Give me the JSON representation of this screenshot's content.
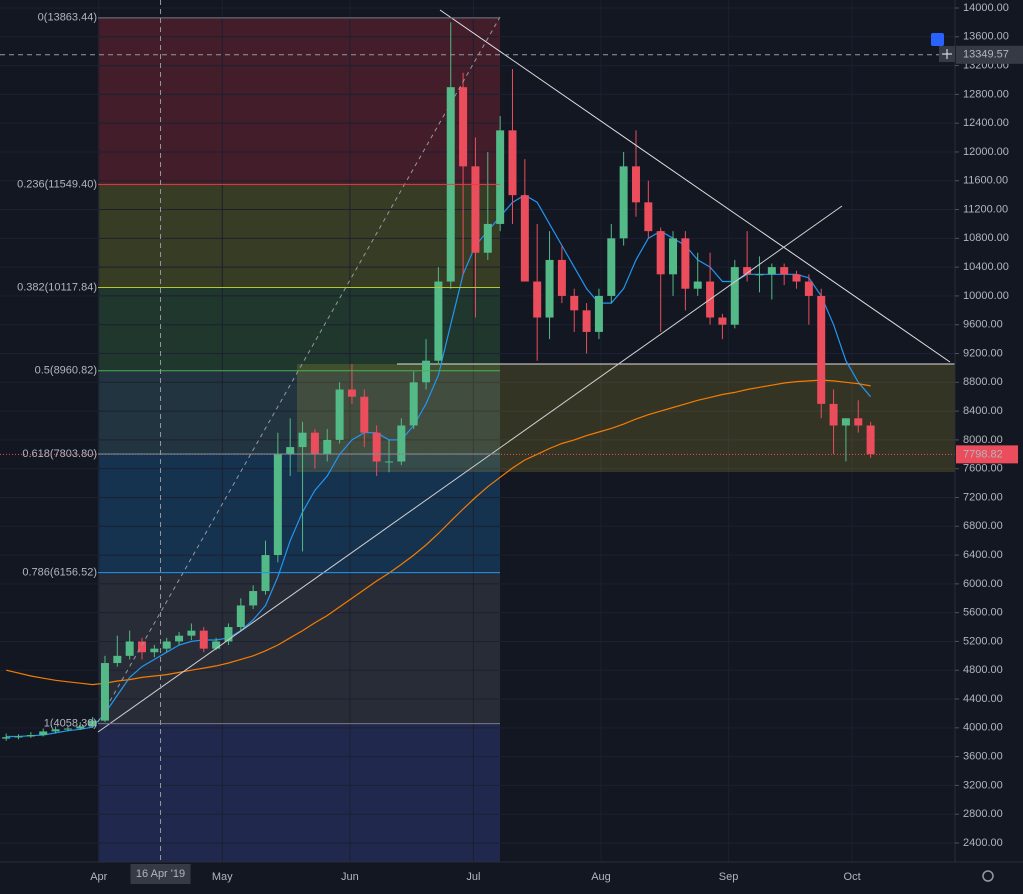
{
  "chart_data": {
    "type": "candlestick",
    "dates": [
      "2019-03-08",
      "2019-03-11",
      "2019-03-14",
      "2019-03-17",
      "2019-03-20",
      "2019-03-23",
      "2019-03-26",
      "2019-03-29",
      "2019-04-01",
      "2019-04-04",
      "2019-04-07",
      "2019-04-10",
      "2019-04-13",
      "2019-04-16",
      "2019-04-19",
      "2019-04-22",
      "2019-04-25",
      "2019-04-28",
      "2019-05-01",
      "2019-05-04",
      "2019-05-07",
      "2019-05-10",
      "2019-05-13",
      "2019-05-16",
      "2019-05-19",
      "2019-05-22",
      "2019-05-25",
      "2019-05-28",
      "2019-05-31",
      "2019-06-03",
      "2019-06-06",
      "2019-06-09",
      "2019-06-12",
      "2019-06-15",
      "2019-06-18",
      "2019-06-21",
      "2019-06-24",
      "2019-06-27",
      "2019-06-30",
      "2019-07-03",
      "2019-07-06",
      "2019-07-09",
      "2019-07-12",
      "2019-07-15",
      "2019-07-18",
      "2019-07-21",
      "2019-07-24",
      "2019-07-27",
      "2019-07-30",
      "2019-08-02",
      "2019-08-05",
      "2019-08-08",
      "2019-08-11",
      "2019-08-14",
      "2019-08-17",
      "2019-08-20",
      "2019-08-23",
      "2019-08-26",
      "2019-08-29",
      "2019-09-01",
      "2019-09-04",
      "2019-09-07",
      "2019-09-10",
      "2019-09-13",
      "2019-09-16",
      "2019-09-19",
      "2019-09-22",
      "2019-09-25",
      "2019-09-28",
      "2019-10-01",
      "2019-10-04"
    ],
    "open": [
      3850,
      3870,
      3880,
      3900,
      3950,
      3980,
      3990,
      4020,
      4100,
      4900,
      5000,
      5200,
      5050,
      5100,
      5200,
      5280,
      5350,
      5100,
      5200,
      5400,
      5700,
      5900,
      6400,
      7800,
      7900,
      8100,
      7800,
      8000,
      8700,
      8600,
      8100,
      7700,
      7700,
      8200,
      8800,
      9100,
      10200,
      12900,
      11800,
      10600,
      11000,
      12300,
      11400,
      10200,
      9700,
      10500,
      10000,
      9800,
      9500,
      10000,
      10800,
      11800,
      11300,
      10900,
      10300,
      10800,
      10100,
      10200,
      9700,
      9600,
      10400,
      10300,
      10300,
      10400,
      10300,
      10200,
      10000,
      8500,
      8200,
      8300,
      8200
    ],
    "high": [
      3920,
      3910,
      3940,
      3990,
      4020,
      4030,
      4080,
      4150,
      5000,
      5280,
      5350,
      5250,
      5150,
      5250,
      5330,
      5450,
      5400,
      5250,
      5450,
      5800,
      5980,
      6600,
      8100,
      8300,
      8250,
      8150,
      8150,
      8800,
      9050,
      8700,
      8200,
      8000,
      8300,
      8950,
      9400,
      10400,
      13800,
      13100,
      12200,
      12000,
      12500,
      13150,
      11900,
      11000,
      10900,
      10700,
      10100,
      9900,
      10100,
      11000,
      12000,
      12300,
      11600,
      10950,
      10900,
      10900,
      10600,
      10600,
      9750,
      10500,
      10900,
      10550,
      10450,
      10450,
      10350,
      10300,
      10100,
      8700,
      8300,
      8550,
      8250
    ],
    "low": [
      3820,
      3840,
      3860,
      3880,
      3920,
      3950,
      3970,
      4000,
      4080,
      4850,
      4950,
      4950,
      4980,
      5050,
      5150,
      5220,
      5050,
      5080,
      5150,
      5350,
      5650,
      5850,
      6300,
      7500,
      6450,
      7600,
      7700,
      7950,
      8500,
      7900,
      7500,
      7550,
      7650,
      8150,
      8700,
      9050,
      10100,
      10300,
      9700,
      10500,
      10900,
      11000,
      10200,
      9100,
      9400,
      9900,
      9500,
      9200,
      9400,
      9900,
      10700,
      11100,
      10800,
      9500,
      10000,
      9800,
      10000,
      9600,
      9400,
      9550,
      10200,
      10050,
      9950,
      10150,
      10100,
      9600,
      8300,
      7800,
      7700,
      8100,
      7750
    ],
    "close": [
      3870,
      3880,
      3900,
      3950,
      3980,
      3990,
      4020,
      4100,
      4900,
      5000,
      5200,
      5050,
      5100,
      5200,
      5280,
      5350,
      5100,
      5200,
      5400,
      5700,
      5900,
      6400,
      7800,
      7900,
      8100,
      7800,
      8000,
      8700,
      8600,
      8100,
      7700,
      7700,
      8200,
      8800,
      9100,
      10200,
      12900,
      11800,
      10600,
      11000,
      12300,
      11400,
      10200,
      9700,
      10500,
      10000,
      9800,
      9500,
      10000,
      10800,
      11800,
      11300,
      10900,
      10300,
      10800,
      10100,
      10200,
      9700,
      9600,
      10400,
      10300,
      10300,
      10400,
      10300,
      10200,
      10000,
      8500,
      8200,
      8300,
      8200,
      7800
    ],
    "up_color": "#53b987",
    "down_color": "#eb4d5c",
    "series": [
      {
        "color": "#2196f3",
        "values": [
          3880,
          3880,
          3890,
          3900,
          3930,
          3960,
          3980,
          4010,
          4200,
          4450,
          4700,
          4850,
          4950,
          5050,
          5150,
          5200,
          5220,
          5220,
          5250,
          5350,
          5500,
          5700,
          6100,
          6600,
          7000,
          7300,
          7500,
          7800,
          8000,
          8100,
          8100,
          8000,
          8000,
          8200,
          8500,
          8900,
          9600,
          10300,
          10700,
          10900,
          11100,
          11300,
          11400,
          11300,
          11000,
          10700,
          10400,
          10100,
          9900,
          9900,
          10100,
          10500,
          10800,
          10900,
          10800,
          10700,
          10500,
          10400,
          10200,
          10200,
          10300,
          10300,
          10300,
          10300,
          10300,
          10250,
          10000,
          9600,
          9100,
          8800,
          8600
        ]
      },
      {
        "color": "#f57c00",
        "values": [
          4800,
          4760,
          4720,
          4690,
          4660,
          4640,
          4620,
          4600,
          4620,
          4650,
          4670,
          4700,
          4720,
          4740,
          4770,
          4800,
          4830,
          4860,
          4900,
          4950,
          5000,
          5070,
          5150,
          5250,
          5350,
          5460,
          5560,
          5680,
          5800,
          5920,
          6040,
          6150,
          6270,
          6400,
          6540,
          6700,
          6870,
          7040,
          7200,
          7350,
          7480,
          7610,
          7720,
          7800,
          7880,
          7950,
          8000,
          8060,
          8110,
          8160,
          8220,
          8290,
          8350,
          8400,
          8450,
          8500,
          8550,
          8590,
          8630,
          8660,
          8700,
          8730,
          8760,
          8790,
          8810,
          8820,
          8830,
          8820,
          8800,
          8780,
          8750
        ]
      }
    ],
    "xlim": [
      "2019-03-08",
      "2019-10-26"
    ],
    "xticks": [
      {
        "value": "2019-04-01",
        "label": "Apr"
      },
      {
        "value": "2019-05-01",
        "label": "May"
      },
      {
        "value": "2019-06-01",
        "label": "Jun"
      },
      {
        "value": "2019-07-01",
        "label": "Jul"
      },
      {
        "value": "2019-08-01",
        "label": "Aug"
      },
      {
        "value": "2019-09-01",
        "label": "Sep"
      },
      {
        "value": "2019-10-01",
        "label": "Oct"
      }
    ],
    "ylim": [
      2136,
      14111
    ],
    "yticks": [
      {
        "value": 14000,
        "label": "14000.00"
      },
      {
        "value": 13600,
        "label": "13600.00"
      },
      {
        "value": 13200,
        "label": "13200.00"
      },
      {
        "value": 12800,
        "label": "12800.00"
      },
      {
        "value": 12400,
        "label": "12400.00"
      },
      {
        "value": 12000,
        "label": "12000.00"
      },
      {
        "value": 11600,
        "label": "11600.00"
      },
      {
        "value": 11200,
        "label": "11200.00"
      },
      {
        "value": 10800,
        "label": "10800.00"
      },
      {
        "value": 10400,
        "label": "10400.00"
      },
      {
        "value": 10000,
        "label": "10000.00"
      },
      {
        "value": 9600,
        "label": "9600.00"
      },
      {
        "value": 9200,
        "label": "9200.00"
      },
      {
        "value": 8800,
        "label": "8800.00"
      },
      {
        "value": 8400,
        "label": "8400.00"
      },
      {
        "value": 8000,
        "label": "8000.00"
      },
      {
        "value": 7600,
        "label": "7600.00"
      },
      {
        "value": 7200,
        "label": "7200.00"
      },
      {
        "value": 6800,
        "label": "6800.00"
      },
      {
        "value": 6400,
        "label": "6400.00"
      },
      {
        "value": 6000,
        "label": "6000.00"
      },
      {
        "value": 5600,
        "label": "5600.00"
      },
      {
        "value": 5200,
        "label": "5200.00"
      },
      {
        "value": 4800,
        "label": "4800.00"
      },
      {
        "value": 4400,
        "label": "4400.00"
      },
      {
        "value": 4000,
        "label": "4000.00"
      },
      {
        "value": 3600,
        "label": "3600.00"
      },
      {
        "value": 3200,
        "label": "3200.00"
      },
      {
        "value": 2800,
        "label": "2800.00"
      },
      {
        "value": 2400,
        "label": "2400.00"
      }
    ],
    "fib_levels": [
      {
        "label": "0(13863.44)",
        "value": 13863.44,
        "color": "#787b86"
      },
      {
        "label": "0.236(11549.40)",
        "value": 11549.4,
        "color": "#f23645"
      },
      {
        "label": "0.382(10117.84)",
        "value": 10117.84,
        "color": "#b5c72c"
      },
      {
        "label": "0.5(8960.82)",
        "value": 8960.82,
        "color": "#4caf50"
      },
      {
        "label": "0.618(7803.80)",
        "value": 7803.8,
        "color": "#5a9fa8"
      },
      {
        "label": "0.786(6156.52)",
        "value": 6156.52,
        "color": "#2196f3"
      },
      {
        "label": "1(4058.30)",
        "value": 4058.3,
        "color": "#787b86"
      }
    ],
    "fib_below_color": "#3f51b5",
    "crosshair": {
      "date": "2019-04-16",
      "date_label": "16 Apr '19",
      "price": 13349.57
    },
    "last_price": 7798.82
  }
}
